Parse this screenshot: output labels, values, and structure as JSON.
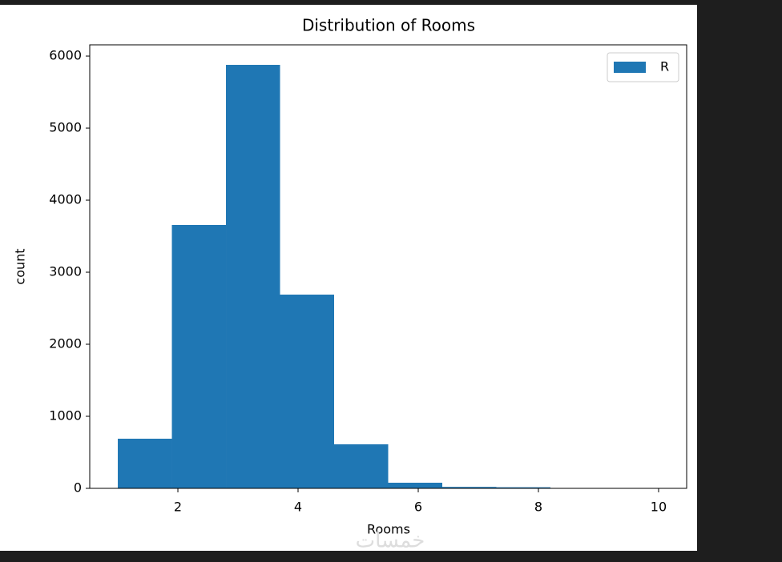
{
  "chart_data": {
    "type": "histogram",
    "title": "Distribution of Rooms",
    "x_label": "Rooms",
    "y_label": "count",
    "bins": [
      1,
      1.9,
      2.8,
      3.7,
      4.6,
      5.5,
      6.4,
      7.3,
      8.2,
      9.1,
      10
    ],
    "series": [
      {
        "name": "R",
        "color": "#1f77b4",
        "values": [
          689,
          3656,
          5878,
          2689,
          611,
          78,
          20,
          15,
          3,
          1
        ]
      }
    ],
    "xlim": [
      0.533,
      10.467
    ],
    "xticks": [
      2,
      4,
      6,
      8,
      10
    ],
    "ylim": [
      0,
      6156
    ],
    "yticks": [
      0,
      1000,
      2000,
      3000,
      4000,
      5000,
      6000
    ],
    "legend": "upper right",
    "watermark": "خمسات"
  }
}
